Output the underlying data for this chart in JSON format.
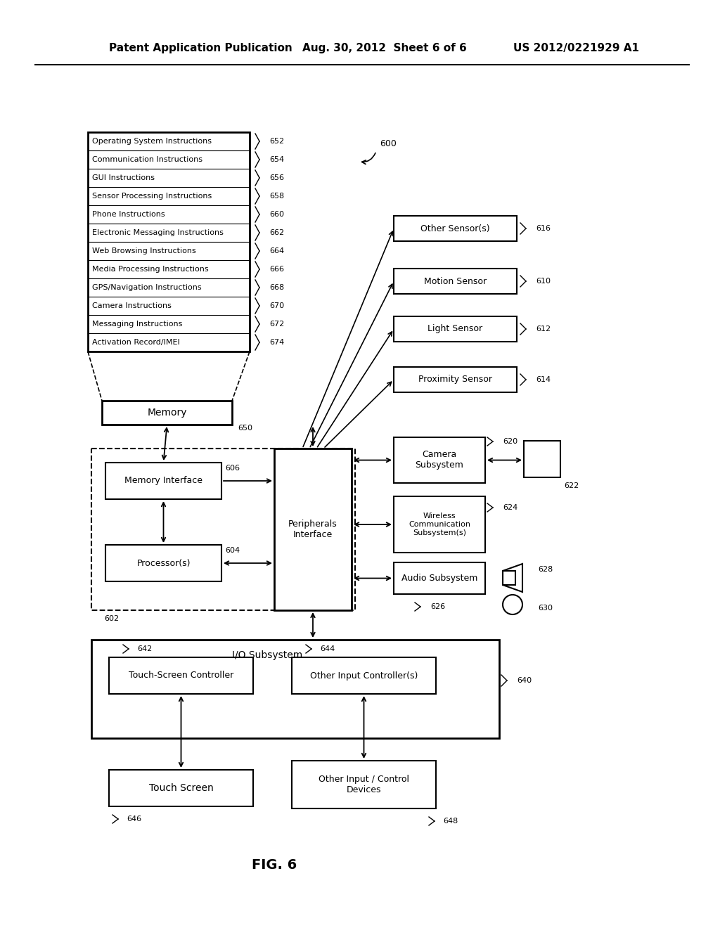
{
  "title_left": "Patent Application Publication",
  "title_mid": "Aug. 30, 2012  Sheet 6 of 6",
  "title_right": "US 2012/0221929 A1",
  "bg_color": "#ffffff",
  "memory_items": [
    [
      "Operating System Instructions",
      "652"
    ],
    [
      "Communication Instructions",
      "654"
    ],
    [
      "GUI Instructions",
      "656"
    ],
    [
      "Sensor Processing Instructions",
      "658"
    ],
    [
      "Phone Instructions",
      "660"
    ],
    [
      "Electronic Messaging Instructions",
      "662"
    ],
    [
      "Web Browsing Instructions",
      "664"
    ],
    [
      "Media Processing Instructions",
      "666"
    ],
    [
      "GPS/Navigation Instructions",
      "668"
    ],
    [
      "Camera Instructions",
      "670"
    ],
    [
      "Messaging Instructions",
      "672"
    ],
    [
      "Activation Record/IMEI",
      "674"
    ]
  ],
  "sensor_boxes": [
    [
      "Other Sensor(s)",
      "616"
    ],
    [
      "Motion Sensor",
      "610"
    ],
    [
      "Light Sensor",
      "612"
    ],
    [
      "Proximity Sensor",
      "614"
    ]
  ]
}
